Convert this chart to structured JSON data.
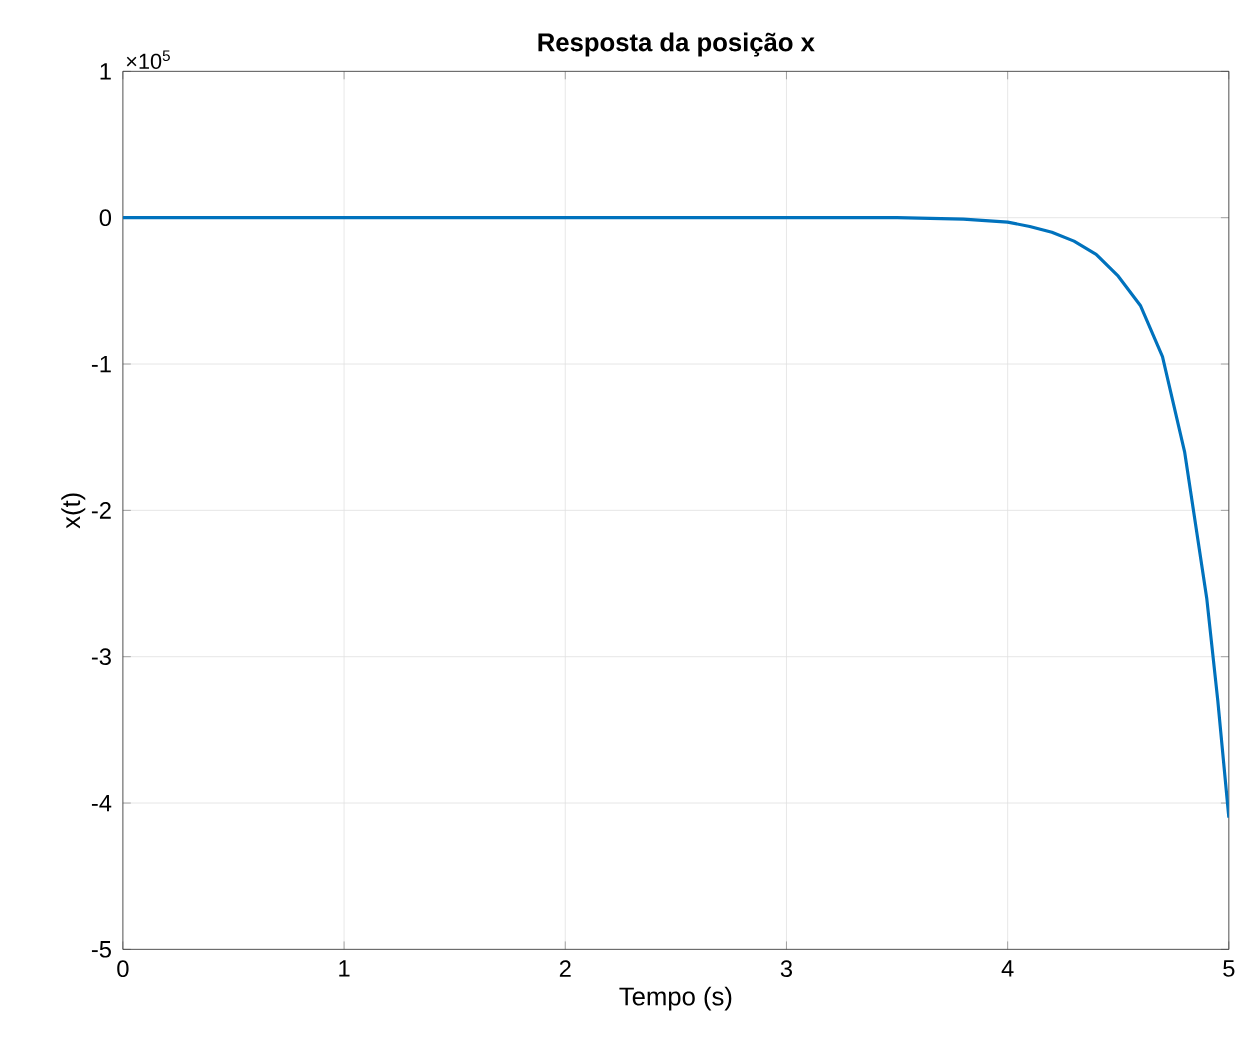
{
  "chart_data": {
    "type": "line",
    "title": "Resposta da posição x",
    "xlabel": "Tempo (s)",
    "ylabel": "x(t)",
    "annotations": [
      "×10$^{5}$"
    ],
    "x": [
      0,
      0.5,
      1,
      1.5,
      2,
      2.5,
      3,
      3.5,
      3.8,
      4,
      4.1,
      4.2,
      4.3,
      4.4,
      4.5,
      4.6,
      4.7,
      4.8,
      4.9,
      4.95,
      5
    ],
    "series": [
      {
        "color": "#0072bd",
        "values": [
          0,
          0,
          0,
          0,
          0,
          0,
          0,
          0,
          -0.01,
          -0.03,
          -0.06,
          -0.1,
          -0.16,
          -0.25,
          -0.4,
          -0.6,
          -0.95,
          -1.6,
          -2.6,
          -3.3,
          -4.1
        ]
      }
    ],
    "xlim": [
      0,
      5
    ],
    "ylim": [
      -5,
      1
    ],
    "xticks": [
      0,
      1,
      2,
      3,
      4,
      5
    ],
    "yticks": [
      -5,
      -4,
      -3,
      -2,
      -1,
      0,
      1
    ],
    "grid": true,
    "marker": "none",
    "line_style": "solid"
  }
}
